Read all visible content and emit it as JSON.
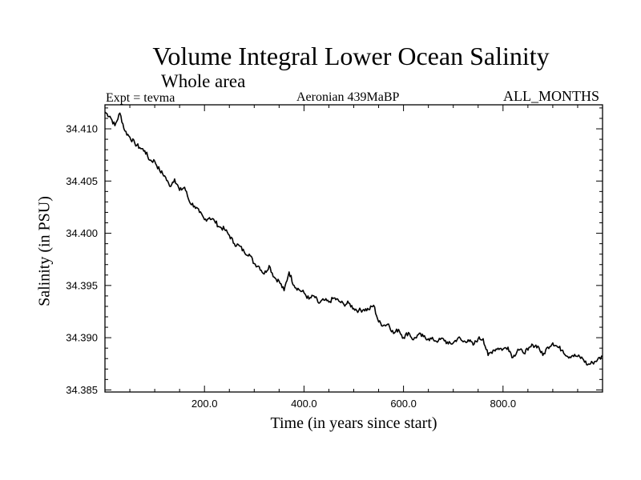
{
  "chart_data": {
    "type": "line",
    "title": "Volume Integral Lower Ocean Salinity",
    "subtitle": "Whole area",
    "annotations": {
      "experiment": "Expt = tevma",
      "period": "Aeronian 439MaBP",
      "months": "ALL_MONTHS"
    },
    "xlabel": "Time (in years since start)",
    "ylabel": "Salinity (in PSU)",
    "xlim": [
      0,
      1000
    ],
    "ylim": [
      34.3848,
      34.4123
    ],
    "xticks": [
      200,
      400,
      600,
      800
    ],
    "xtick_labels": [
      "200.0",
      "400.0",
      "600.0",
      "800.0"
    ],
    "yticks": [
      34.385,
      34.39,
      34.395,
      34.4,
      34.405,
      34.41
    ],
    "ytick_labels": [
      "34.385",
      "34.390",
      "34.395",
      "34.400",
      "34.405",
      "34.410"
    ],
    "series": [
      {
        "name": "Lower ocean salinity",
        "color": "#000000",
        "x": [
          0,
          10,
          20,
          30,
          40,
          50,
          60,
          70,
          80,
          90,
          100,
          110,
          120,
          130,
          140,
          150,
          160,
          170,
          180,
          190,
          200,
          210,
          220,
          230,
          240,
          250,
          260,
          270,
          280,
          290,
          300,
          310,
          320,
          330,
          340,
          350,
          360,
          370,
          380,
          390,
          400,
          410,
          420,
          430,
          440,
          450,
          460,
          470,
          480,
          490,
          500,
          510,
          520,
          530,
          540,
          550,
          560,
          570,
          580,
          590,
          600,
          610,
          620,
          630,
          640,
          650,
          660,
          670,
          680,
          690,
          700,
          710,
          720,
          730,
          740,
          750,
          760,
          770,
          780,
          790,
          800,
          810,
          820,
          830,
          840,
          850,
          860,
          870,
          880,
          890,
          900,
          910,
          920,
          930,
          940,
          950,
          960,
          970,
          980,
          990,
          1000
        ],
        "values": [
          34.4116,
          34.4112,
          34.4103,
          34.4115,
          34.4098,
          34.4092,
          34.4086,
          34.4082,
          34.4079,
          34.407,
          34.4069,
          34.406,
          34.4055,
          34.4045,
          34.4052,
          34.4041,
          34.4044,
          34.403,
          34.4026,
          34.402,
          34.4013,
          34.4015,
          34.4012,
          34.4006,
          34.4004,
          34.3998,
          34.399,
          34.3988,
          34.3982,
          34.398,
          34.3971,
          34.3968,
          34.3961,
          34.3969,
          34.3958,
          34.3954,
          34.3945,
          34.3963,
          34.395,
          34.3946,
          34.3943,
          34.3937,
          34.394,
          34.3933,
          34.3936,
          34.3934,
          34.3938,
          34.3935,
          34.3932,
          34.3933,
          34.3928,
          34.3926,
          34.3927,
          34.3927,
          34.3931,
          34.3915,
          34.3912,
          34.3913,
          34.3904,
          34.3908,
          34.39,
          34.3905,
          34.3898,
          34.3903,
          34.3901,
          34.3899,
          34.3898,
          34.3897,
          34.3899,
          34.3894,
          34.3895,
          34.39,
          34.3896,
          34.3898,
          34.3893,
          34.3899,
          34.3899,
          34.3883,
          34.3888,
          34.389,
          34.3889,
          34.3891,
          34.3881,
          34.3889,
          34.3886,
          34.3888,
          34.3893,
          34.3892,
          34.3883,
          34.3891,
          34.3895,
          34.3891,
          34.3888,
          34.3882,
          34.3883,
          34.3882,
          34.388,
          34.3874,
          34.3876,
          34.3879,
          34.3882
        ]
      }
    ]
  }
}
